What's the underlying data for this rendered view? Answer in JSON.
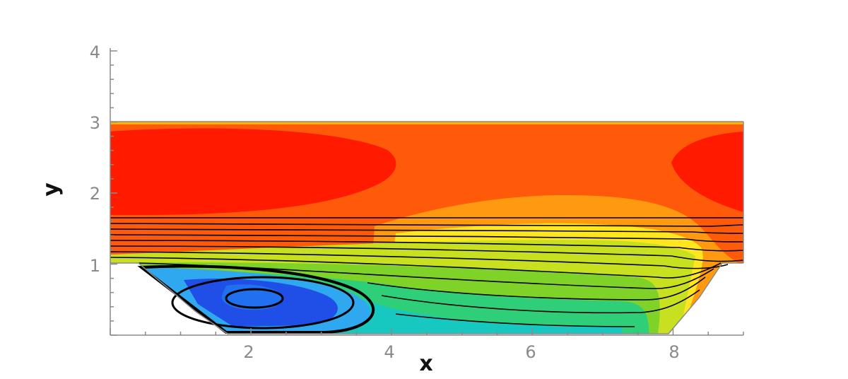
{
  "chart_data": {
    "type": "contour",
    "xlabel": "x",
    "ylabel": "y",
    "xlim": [
      0,
      9
    ],
    "ylim": [
      0,
      4
    ],
    "x_ticks": [
      2,
      4,
      6,
      8
    ],
    "y_ticks": [
      1,
      2,
      3,
      4
    ],
    "grid": false,
    "legend": "none",
    "domain": {
      "top_wall_y": 3,
      "inlet_outlet_floor_y": 1,
      "channel_floor_y": 0,
      "cavity_floor_start_x": 1.7,
      "cavity_floor_end_x": 7.3,
      "cavity_front_wall_start_x": 0.4,
      "cavity_back_wall_end_x": 8.6,
      "domain_end_x": 8.9
    },
    "recirculation_center": [
      2.1,
      0.5
    ],
    "colors": {
      "max": "#ff1a00",
      "high": "#ff5a0a",
      "mid_high": "#ff9a10",
      "mid": "#ffe61e",
      "mid_low": "#7ed228",
      "low": "#16c8c0",
      "min": "#1f4fe6",
      "streamline": "#000000"
    }
  },
  "axes": {
    "x_title": "x",
    "y_title": "y",
    "x_tick_labels": [
      "2",
      "4",
      "6",
      "8"
    ],
    "y_tick_labels": [
      "1",
      "2",
      "3",
      "4"
    ]
  }
}
